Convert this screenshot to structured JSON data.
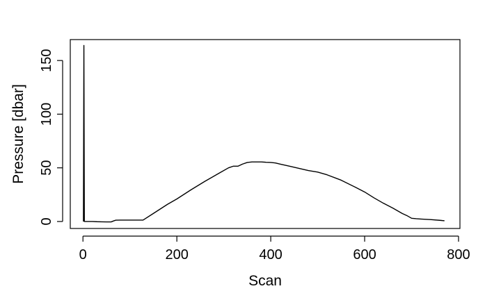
{
  "chart_data": {
    "type": "line",
    "title": "",
    "xlabel": "Scan",
    "ylabel": "Pressure [dbar]",
    "xlim": [
      -27,
      803
    ],
    "ylim": [
      -6.5,
      169.5
    ],
    "x_ticks": [
      0,
      200,
      400,
      600,
      800
    ],
    "y_ticks": [
      0,
      50,
      100,
      150
    ],
    "grid": false,
    "legend": "none",
    "line_color": "#000000",
    "series": [
      {
        "x": [
          1,
          2,
          3,
          10,
          20,
          30,
          40,
          50,
          60,
          65,
          70,
          80,
          100,
          120,
          128,
          150,
          180,
          200,
          230,
          260,
          290,
          310,
          320,
          330,
          340,
          350,
          360,
          370,
          380,
          390,
          400,
          410,
          420,
          440,
          460,
          480,
          500,
          520,
          550,
          580,
          600,
          620,
          640,
          660,
          670,
          680,
          690,
          700,
          710,
          720,
          740,
          760,
          770
        ],
        "y": [
          0,
          164,
          0,
          0,
          0,
          -0.2,
          -0.3,
          -0.4,
          -0.4,
          0.5,
          1.2,
          1.3,
          1.3,
          1.3,
          1.3,
          7.5,
          16,
          21,
          29.5,
          37.5,
          45,
          50,
          51.5,
          51.5,
          53.5,
          55,
          55.5,
          55.5,
          55.5,
          55.2,
          55,
          54.5,
          53.5,
          51.5,
          49.5,
          47.5,
          46,
          43.5,
          38.5,
          32,
          27.5,
          22,
          17,
          12.5,
          10,
          7.5,
          5.5,
          3,
          2.6,
          2.3,
          1.8,
          1.1,
          0.7
        ]
      }
    ]
  }
}
